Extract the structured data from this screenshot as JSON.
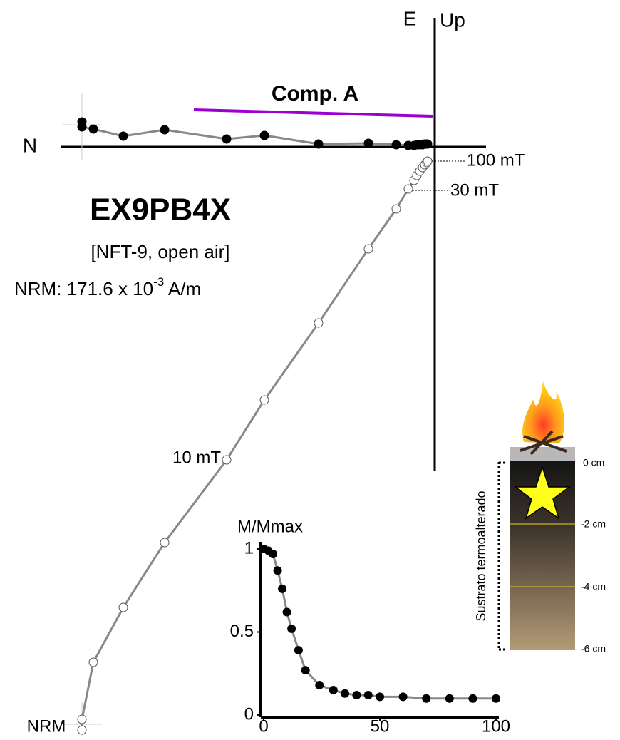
{
  "specimen": {
    "id": "EX9PB4X",
    "site": "[NFT-9, open air]",
    "nrm_prefix": "NRM:  171.6 x 10",
    "nrm_exponent": "-3",
    "nrm_unit": " A/m"
  },
  "chart_data": [
    {
      "type": "zijderveld",
      "x_label": "N",
      "y_label_h": "E",
      "y_label_v": "Up",
      "x": [
        -4.95,
        -4.95,
        -4.79,
        -4.37,
        -3.79,
        -2.92,
        -2.39,
        -1.63,
        -0.93,
        -0.54,
        -0.37,
        -0.29,
        -0.25,
        -0.21,
        -0.17,
        -0.14,
        -0.11,
        -0.1
      ],
      "series": [
        {
          "marker": "filled",
          "color": "#000000",
          "values": [
            0.35,
            0.28,
            0.25,
            0.15,
            0.24,
            0.11,
            0.16,
            0.04,
            0.05,
            0.03,
            0.02,
            0.02,
            0.03,
            0.03,
            0.03,
            0.04,
            0.04,
            0.04
          ]
        },
        {
          "marker": "open",
          "color": "#ffffff",
          "values": [
            -8.18,
            -8.03,
            -7.23,
            -6.46,
            -5.55,
            -4.39,
            -3.55,
            -2.47,
            -1.43,
            -0.87,
            -0.59,
            -0.47,
            -0.4,
            -0.34,
            -0.29,
            -0.25,
            -0.22,
            -0.2
          ]
        }
      ],
      "line_color": "#888888",
      "xlim": [
        -5.25,
        0.72
      ],
      "ylim": [
        -8.2,
        1.9
      ],
      "component": {
        "label": "Comp. A",
        "color": "#9b00d3"
      },
      "annotations": [
        "100 mT",
        "30 mT",
        "10 mT",
        "NRM"
      ]
    },
    {
      "type": "line",
      "y_label": "M/Mmax",
      "x": [
        0,
        2,
        4,
        6,
        8,
        10,
        12,
        15,
        18,
        24,
        30,
        35,
        40,
        45,
        50,
        60,
        70,
        80,
        90,
        100
      ],
      "series": [
        {
          "color": "#000000",
          "values": [
            1,
            0.99,
            0.97,
            0.87,
            0.76,
            0.62,
            0.52,
            0.39,
            0.27,
            0.18,
            0.15,
            0.13,
            0.12,
            0.12,
            0.11,
            0.11,
            0.1,
            0.1,
            0.1,
            0.1
          ]
        }
      ],
      "line_color": "#888888",
      "xlim": [
        0,
        100
      ],
      "ylim": [
        0,
        1
      ],
      "xticks": [
        0,
        50,
        100
      ],
      "yticks": [
        0,
        0.5,
        1
      ]
    }
  ],
  "profile": {
    "label": "Sustrato termoalterado",
    "depths": [
      "0 cm",
      "-2 cm",
      "-4 cm",
      "-6 cm"
    ]
  }
}
